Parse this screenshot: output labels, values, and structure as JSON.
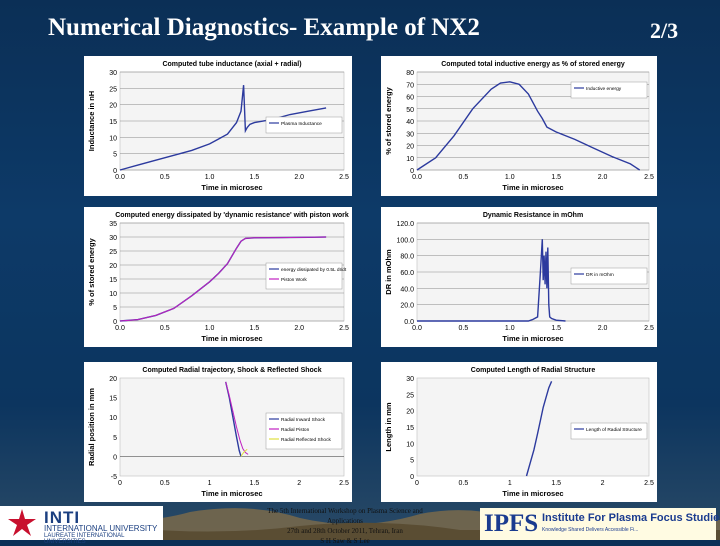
{
  "title": "Numerical Diagnostics- Example of NX2",
  "page_number": "2/3",
  "footer": {
    "conference_line1": "The 5th International Workshop on Plasma Science and Applications",
    "conference_line2": "27th and 28th October 2011, Tehran, Iran",
    "authors": "S H Saw & S Lee",
    "inti_name": "INTI",
    "inti_university": "INTERNATIONAL UNIVERSITY",
    "inti_laureate": "LAUREATE INTERNATIONAL UNIVERSITIES",
    "ipfs_abbrev": "IPFS",
    "ipfs_name": "Institute For Plasma Focus Studies",
    "ipfs_tagline": "Knowledge Shared Delivers Accessible Fi..."
  },
  "colors": {
    "series": "#2c3a9e",
    "series2": "#c020c0",
    "series3": "#e0e040",
    "grid": "#8a8a8a"
  },
  "chart_data": [
    {
      "id": "inductance",
      "type": "line",
      "title": "Computed tube inductance (axial + radial)",
      "xlabel": "Time in microsec",
      "ylabel": "Inductance in nH",
      "xlim": [
        0,
        2.5
      ],
      "ylim": [
        0,
        30
      ],
      "xticks": [
        "0.0",
        "0.5",
        "1.0",
        "1.5",
        "2.0",
        "2.5"
      ],
      "yticks": [
        "0",
        "5",
        "10",
        "15",
        "20",
        "25",
        "30"
      ],
      "grid": true,
      "legend_position": "right",
      "series": [
        {
          "name": "Plasma Inductance",
          "x": [
            0,
            0.2,
            0.4,
            0.6,
            0.8,
            1.0,
            1.1,
            1.2,
            1.3,
            1.35,
            1.38,
            1.4,
            1.42,
            1.45,
            1.5,
            1.7,
            1.9,
            2.1,
            2.3
          ],
          "y": [
            0,
            1.5,
            3,
            4.5,
            6,
            8,
            9.5,
            11,
            14.5,
            18,
            26,
            12,
            13,
            14,
            14.5,
            15.5,
            17,
            18,
            19
          ]
        }
      ]
    },
    {
      "id": "inductive-energy",
      "type": "line",
      "title": "Computed total inductive energy as % of stored energy",
      "xlabel": "Time in microsec",
      "ylabel": "% of stored energy",
      "xlim": [
        0,
        2.5
      ],
      "ylim": [
        0,
        80
      ],
      "xticks": [
        "0.0",
        "0.5",
        "1.0",
        "1.5",
        "2.0",
        "2.5"
      ],
      "yticks": [
        "0",
        "10",
        "20",
        "30",
        "40",
        "50",
        "60",
        "70",
        "80"
      ],
      "grid": true,
      "legend_position": "top-right",
      "series": [
        {
          "name": "Inductive energy",
          "x": [
            0,
            0.2,
            0.4,
            0.6,
            0.8,
            0.9,
            1.0,
            1.1,
            1.2,
            1.3,
            1.35,
            1.4,
            1.5,
            1.7,
            1.9,
            2.1,
            2.3,
            2.4
          ],
          "y": [
            0,
            10,
            28,
            50,
            66,
            71,
            72,
            70,
            62,
            48,
            42,
            35,
            31,
            25,
            18,
            11,
            5,
            0
          ]
        }
      ]
    },
    {
      "id": "energy-dissipated",
      "type": "line",
      "title": "Computed energy dissipated by 'dynamic resistance' with piston work",
      "xlabel": "Time in microsec",
      "ylabel": "% of stored energy",
      "xlim": [
        0,
        2.5
      ],
      "ylim": [
        0,
        35
      ],
      "xticks": [
        "0.0",
        "0.5",
        "1.0",
        "1.5",
        "2.0",
        "2.5"
      ],
      "yticks": [
        "0",
        "5",
        "10",
        "15",
        "20",
        "25",
        "30",
        "35"
      ],
      "grid": true,
      "legend_position": "right",
      "series": [
        {
          "name": "energy dissipated by 0.5L dI/dt",
          "x": [
            0,
            0.2,
            0.4,
            0.6,
            0.8,
            1.0,
            1.1,
            1.2,
            1.3,
            1.35,
            1.4,
            1.5,
            1.8,
            2.1,
            2.3
          ],
          "y": [
            0,
            0.5,
            2,
            4.5,
            9,
            14,
            17,
            20.5,
            26,
            28.5,
            29.5,
            29.7,
            29.8,
            29.9,
            30
          ]
        },
        {
          "name": "Piston Work",
          "x": [
            0,
            0.2,
            0.4,
            0.6,
            0.8,
            1.0,
            1.1,
            1.2,
            1.3,
            1.35,
            1.4,
            1.5,
            1.8,
            2.1,
            2.3
          ],
          "y": [
            0,
            0.5,
            2,
            4.5,
            9,
            14,
            17,
            20.5,
            26,
            28.5,
            29.5,
            29.7,
            29.8,
            29.9,
            30
          ]
        }
      ]
    },
    {
      "id": "dynamic-resistance",
      "type": "line",
      "title": "Dynamic Resistance in mOhm",
      "xlabel": "Time in microsec",
      "ylabel": "DR in mOhm",
      "xlim": [
        0,
        2.5
      ],
      "ylim": [
        0,
        120
      ],
      "xticks": [
        "0.0",
        "0.5",
        "1.0",
        "1.5",
        "2.0",
        "2.5"
      ],
      "yticks": [
        "0.0",
        "20.0",
        "40.0",
        "60.0",
        "80.0",
        "100.0",
        "120.0"
      ],
      "grid": true,
      "legend_position": "right",
      "series": [
        {
          "name": "DR in mOhm",
          "x": [
            0,
            1.2,
            1.25,
            1.3,
            1.33,
            1.35,
            1.36,
            1.37,
            1.38,
            1.39,
            1.4,
            1.41,
            1.42,
            1.43,
            1.45,
            1.5,
            1.6
          ],
          "y": [
            0,
            0,
            2,
            5,
            60,
            100,
            50,
            80,
            45,
            85,
            40,
            90,
            20,
            5,
            3,
            1,
            0
          ]
        }
      ]
    },
    {
      "id": "radial-trajectory",
      "type": "line",
      "title": "Computed Radial trajectory, Shock & Reflected Shock",
      "xlabel": "Time in microsec",
      "ylabel": "Radial position in mm",
      "xlim": [
        0,
        2.5
      ],
      "ylim": [
        -5,
        20
      ],
      "xticks": [
        "0",
        "0.5",
        "1",
        "1.5",
        "2",
        "2.5"
      ],
      "yticks": [
        "-5",
        "0",
        "5",
        "10",
        "15",
        "20"
      ],
      "grid": false,
      "legend_position": "right",
      "series": [
        {
          "name": "Radial Inward Shock",
          "x": [
            1.18,
            1.22,
            1.26,
            1.3,
            1.33,
            1.35
          ],
          "y": [
            19,
            15,
            10,
            5,
            1.5,
            0
          ]
        },
        {
          "name": "Radial Piston",
          "x": [
            1.18,
            1.22,
            1.26,
            1.3,
            1.34,
            1.37,
            1.4,
            1.43
          ],
          "y": [
            19,
            15.5,
            11.5,
            7.5,
            4,
            2,
            1,
            0.5
          ]
        },
        {
          "name": "Radial Reflected Shock",
          "x": [
            1.35,
            1.38,
            1.42
          ],
          "y": [
            0,
            1,
            1.8
          ]
        }
      ]
    },
    {
      "id": "radial-length",
      "type": "line",
      "title": "Computed Length of Radial Structure",
      "xlabel": "Time in microsec",
      "ylabel": "Length in mm",
      "xlim": [
        0,
        2.5
      ],
      "ylim": [
        0,
        30
      ],
      "xticks": [
        "0",
        "0.5",
        "1",
        "1.5",
        "2",
        "2.5"
      ],
      "yticks": [
        "0",
        "5",
        "10",
        "15",
        "20",
        "25",
        "30"
      ],
      "grid": false,
      "legend_position": "right",
      "series": [
        {
          "name": "Length of Radial Structure",
          "x": [
            1.18,
            1.22,
            1.26,
            1.3,
            1.33,
            1.36,
            1.39,
            1.42,
            1.45
          ],
          "y": [
            0,
            4,
            8,
            13,
            17,
            21,
            24,
            27,
            29
          ]
        }
      ]
    }
  ]
}
